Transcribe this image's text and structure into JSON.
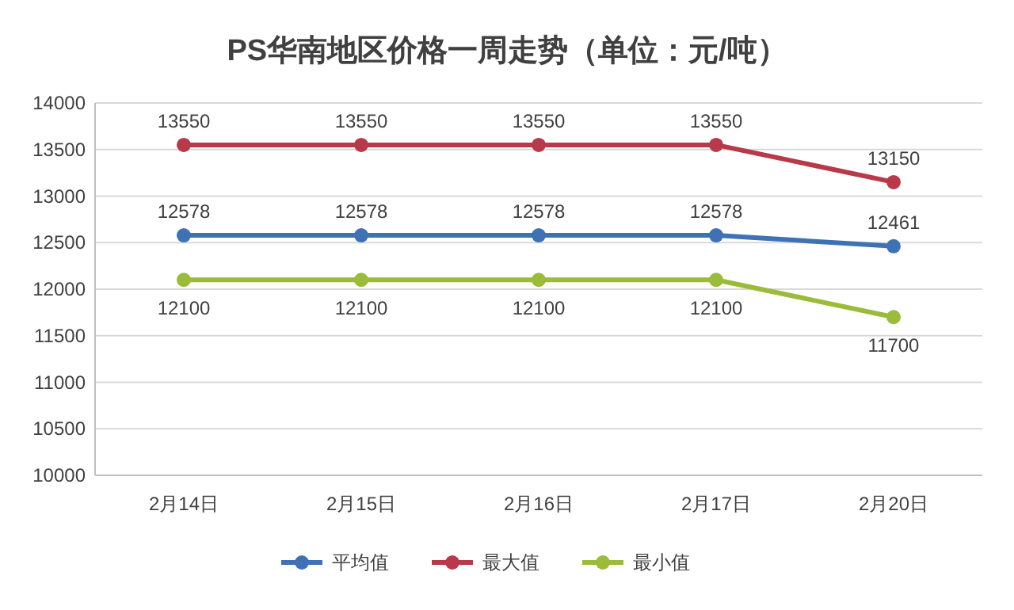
{
  "chart_data": {
    "type": "line",
    "title": "PS华南地区价格一周走势（单位：元/吨）",
    "categories": [
      "2月14日",
      "2月15日",
      "2月16日",
      "2月17日",
      "2月20日"
    ],
    "series": [
      {
        "name": "平均值",
        "color": "#3f72b5",
        "values": [
          12578,
          12578,
          12578,
          12578,
          12461
        ]
      },
      {
        "name": "最大值",
        "color": "#b8394a",
        "values": [
          13550,
          13550,
          13550,
          13550,
          13150
        ]
      },
      {
        "name": "最小值",
        "color": "#9bbb3b",
        "values": [
          12100,
          12100,
          12100,
          12100,
          11700
        ]
      }
    ],
    "ylim": [
      10000,
      14000
    ],
    "yticks": [
      10000,
      10500,
      11000,
      11500,
      12000,
      12500,
      13000,
      13500,
      14000
    ],
    "grid": "y",
    "legend": "bottom",
    "marker": "circle",
    "line_style": "solid",
    "data_labels": true
  }
}
